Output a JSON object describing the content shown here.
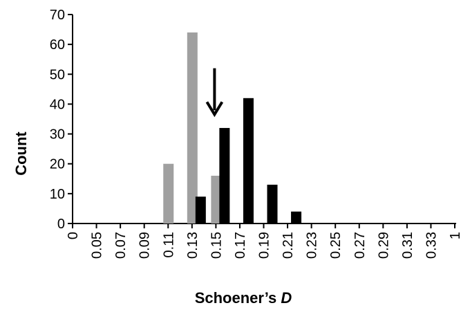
{
  "chart_data": {
    "type": "bar",
    "xlabel": "Schoener’s ",
    "xlabel_italic": "D",
    "ylabel": "Count",
    "ylim": [
      0,
      70
    ],
    "yticks": [
      0,
      10,
      20,
      30,
      40,
      50,
      60,
      70
    ],
    "categories": [
      "0",
      "0.05",
      "0.07",
      "0.09",
      "0.11",
      "0.13",
      "0.15",
      "0.17",
      "0.19",
      "0.21",
      "0.23",
      "0.25",
      "0.27",
      "0.29",
      "0.31",
      "0.33",
      "1"
    ],
    "series": [
      {
        "color": "#a0a0a0",
        "values": [
          0,
          0,
          0,
          0,
          20,
          64,
          16,
          0,
          0,
          0,
          0,
          0,
          0,
          0,
          0,
          0,
          0
        ]
      },
      {
        "color": "#000000",
        "values": [
          0,
          0,
          0,
          0,
          0,
          9,
          32,
          42,
          13,
          4,
          0,
          0,
          0,
          0,
          0,
          0,
          0
        ]
      }
    ],
    "annotation": {
      "type": "down-arrow",
      "x_category_index": 6,
      "value_top": 52,
      "value_bottom": 37
    },
    "grid": false,
    "legend": "none"
  }
}
